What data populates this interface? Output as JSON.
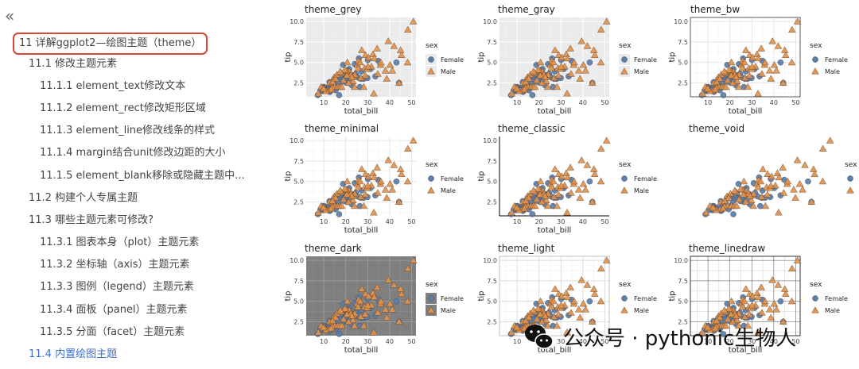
{
  "sidebar": {
    "collapse_icon": "«",
    "items": [
      {
        "label": "11 详解ggplot2—绘图主题（theme）",
        "level": 1,
        "boxed": true
      },
      {
        "label": "11.1 修改主题元素",
        "level": 2
      },
      {
        "label": "11.1.1 element_text修改文本",
        "level": 3
      },
      {
        "label": "11.1.2 element_rect修改矩形区域",
        "level": 3
      },
      {
        "label": "11.1.3 element_line修改线条的样式",
        "level": 3
      },
      {
        "label": "11.1.4 margin结合unit修改边距的大小",
        "level": 3
      },
      {
        "label": "11.1.5 element_blank移除或隐藏主题中...",
        "level": 3
      },
      {
        "label": "11.2 构建个人专属主题",
        "level": 2
      },
      {
        "label": "11.3 哪些主题元素可修改?",
        "level": 2
      },
      {
        "label": "11.3.1 图表本身（plot）主题元素",
        "level": 3
      },
      {
        "label": "11.3.2 坐标轴（axis）主题元素",
        "level": 3
      },
      {
        "label": "11.3.3 图例（legend）主题元素",
        "level": 3
      },
      {
        "label": "11.3.4 面板（panel）主题元素",
        "level": 3
      },
      {
        "label": "11.3.5 分面（facet）主题元素",
        "level": 3
      },
      {
        "label": "11.4 内置绘图主题",
        "level": 2,
        "active": true
      }
    ]
  },
  "chart_data": {
    "type": "scatter",
    "xlabel": "total_bill",
    "ylabel": "tip",
    "x_ticks": [
      10,
      20,
      30,
      40,
      50
    ],
    "y_ticks": [
      "2.5",
      "5.0",
      "7.5",
      "10.0"
    ],
    "xlim": [
      2,
      52
    ],
    "ylim": [
      0.8,
      10.5
    ],
    "legend_title": "sex",
    "colors": {
      "Female": "#5b7da8",
      "Male": "#e0934e"
    },
    "series": [
      {
        "name": "Female",
        "marker": "circle",
        "points": [
          [
            17,
            1.0
          ],
          [
            24.6,
            3.6
          ],
          [
            21,
            3.5
          ],
          [
            20.3,
            2.8
          ],
          [
            16.3,
            2.0
          ],
          [
            14.8,
            3.0
          ],
          [
            9.6,
            1.5
          ],
          [
            18.3,
            3.5
          ],
          [
            15.8,
            3.2
          ],
          [
            26.9,
            3.0
          ],
          [
            20.8,
            2.5
          ],
          [
            17.9,
            3.0
          ],
          [
            22.4,
            3.5
          ],
          [
            8.5,
            1.5
          ],
          [
            18.4,
            3.0
          ],
          [
            10.3,
            1.7
          ],
          [
            16.5,
            3.2
          ],
          [
            12.9,
            2.0
          ],
          [
            13.4,
            2.0
          ],
          [
            19.5,
            2.6
          ],
          [
            14.3,
            2.5
          ],
          [
            15.7,
            3.0
          ],
          [
            16.8,
            2.5
          ],
          [
            17.5,
            3.0
          ],
          [
            25.4,
            3.2
          ],
          [
            28.1,
            3.0
          ],
          [
            30.1,
            5.3
          ],
          [
            34.8,
            5.2
          ],
          [
            43.1,
            5.0
          ],
          [
            44.3,
            2.5
          ],
          [
            22.8,
            2.2
          ],
          [
            26.4,
            2.0
          ],
          [
            11.2,
            1.8
          ],
          [
            12.6,
            2.6
          ],
          [
            13.0,
            1.5
          ],
          [
            7.3,
            1.0
          ],
          [
            10.1,
            2.0
          ],
          [
            14.5,
            2.0
          ],
          [
            19.8,
            3.0
          ],
          [
            21.6,
            4.2
          ],
          [
            23.7,
            3.3
          ],
          [
            20.9,
            4.0
          ],
          [
            18.8,
            4.7
          ],
          [
            29.9,
            3.1
          ],
          [
            31.3,
            4.2
          ],
          [
            15.4,
            1.6
          ],
          [
            16.0,
            2.0
          ],
          [
            17.3,
            3.3
          ],
          [
            12.7,
            1.4
          ],
          [
            24.1,
            4.8
          ],
          [
            27.2,
            3.9
          ],
          [
            22.1,
            2.9
          ],
          [
            9.8,
            2.0
          ],
          [
            11.7,
            1.6
          ],
          [
            26.0,
            5.5
          ],
          [
            33.5,
            3.3
          ]
        ]
      },
      {
        "name": "Male",
        "marker": "triangle",
        "points": [
          [
            10.3,
            1.7
          ],
          [
            21.0,
            3.5
          ],
          [
            23.7,
            3.3
          ],
          [
            25.3,
            4.7
          ],
          [
            8.8,
            2.0
          ],
          [
            26.9,
            3.1
          ],
          [
            15.0,
            2.0
          ],
          [
            14.8,
            3.2
          ],
          [
            21.6,
            3.9
          ],
          [
            10.3,
            1.7
          ],
          [
            16.3,
            2.0
          ],
          [
            12.4,
            1.6
          ],
          [
            28.6,
            4.3
          ],
          [
            24.1,
            3.5
          ],
          [
            39.4,
            7.6
          ],
          [
            38.1,
            4.0
          ],
          [
            45.4,
            5.9
          ],
          [
            48.3,
            9.0
          ],
          [
            50.8,
            10.0
          ],
          [
            29.0,
            5.9
          ],
          [
            32.4,
            6.0
          ],
          [
            34.3,
            6.7
          ],
          [
            25.9,
            5.2
          ],
          [
            20.7,
            5.0
          ],
          [
            40.2,
            4.7
          ],
          [
            44.3,
            2.5
          ],
          [
            22.4,
            3.5
          ],
          [
            17.3,
            2.0
          ],
          [
            20.3,
            4.0
          ],
          [
            13.8,
            2.0
          ],
          [
            11.0,
            1.5
          ],
          [
            18.2,
            2.0
          ],
          [
            30.4,
            5.6
          ],
          [
            28.2,
            2.0
          ],
          [
            23.3,
            2.7
          ],
          [
            35.8,
            4.7
          ],
          [
            31.7,
            4.5
          ],
          [
            48.2,
            5.0
          ],
          [
            41.2,
            4.0
          ],
          [
            32.8,
            1.2
          ],
          [
            27.3,
            6.5
          ],
          [
            16.0,
            3.5
          ],
          [
            19.6,
            4.1
          ],
          [
            22.8,
            3.2
          ],
          [
            25.6,
            4.3
          ],
          [
            29.8,
            4.2
          ],
          [
            34.6,
            3.6
          ],
          [
            12.7,
            2.5
          ],
          [
            24.0,
            2.0
          ],
          [
            20.5,
            3.4
          ],
          [
            30.1,
            4.5
          ],
          [
            38.7,
            3.0
          ],
          [
            15.4,
            3.0
          ],
          [
            18.0,
            3.7
          ],
          [
            9.9,
            1.8
          ],
          [
            13.4,
            1.7
          ],
          [
            36.0,
            5.0
          ],
          [
            26.6,
            5.0
          ],
          [
            42.0,
            7.0
          ],
          [
            45.0,
            6.5
          ],
          [
            7.5,
            1.2
          ],
          [
            21.3,
            2.5
          ],
          [
            17.5,
            3.9
          ],
          [
            33.0,
            5.5
          ],
          [
            28.9,
            3.4
          ],
          [
            19.0,
            2.8
          ],
          [
            14.0,
            2.6
          ]
        ]
      }
    ]
  },
  "panels": [
    {
      "id": "grey",
      "title": "theme_grey",
      "theme": "grey"
    },
    {
      "id": "gray",
      "title": "theme_gray",
      "theme": "grey"
    },
    {
      "id": "bw",
      "title": "theme_bw",
      "theme": "bw"
    },
    {
      "id": "minimal",
      "title": "theme_minimal",
      "theme": "minimal"
    },
    {
      "id": "classic",
      "title": "theme_classic",
      "theme": "classic"
    },
    {
      "id": "void",
      "title": "theme_void",
      "theme": "void"
    },
    {
      "id": "dark",
      "title": "theme_dark",
      "theme": "dark"
    },
    {
      "id": "light",
      "title": "theme_light",
      "theme": "light"
    },
    {
      "id": "linedraw",
      "title": "theme_linedraw",
      "theme": "linedraw"
    }
  ],
  "legend_labels": [
    "Female",
    "Male"
  ],
  "watermark": {
    "text": "公众号 · pythonic生物人",
    "icon": "wechat-icon"
  }
}
